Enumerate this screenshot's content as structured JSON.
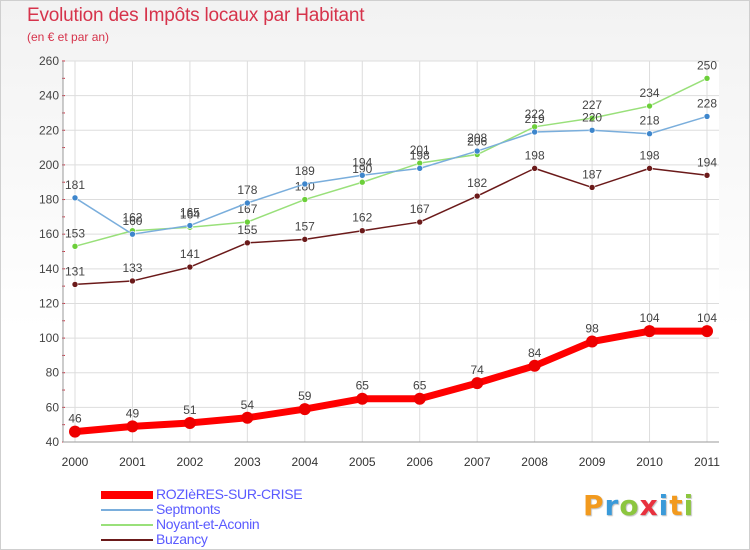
{
  "chart_data": {
    "type": "line",
    "title": "Evolution des Impôts locaux par Habitant",
    "subtitle": "(en € et par an)",
    "categories": [
      "2000",
      "2001",
      "2002",
      "2003",
      "2004",
      "2005",
      "2006",
      "2007",
      "2008",
      "2009",
      "2010",
      "2011"
    ],
    "ylim": [
      40,
      260
    ],
    "yticks": [
      40,
      60,
      80,
      100,
      120,
      140,
      160,
      180,
      200,
      220,
      240,
      260
    ],
    "grid": true,
    "legend_position": "bottom-left",
    "series": [
      {
        "name": "Buzancy",
        "color": "#6b1a1a",
        "marker": "#6b1a1a",
        "values": [
          131,
          133,
          141,
          155,
          157,
          162,
          167,
          182,
          198,
          187,
          198,
          194
        ]
      },
      {
        "name": "Noyant-et-Aconin",
        "color": "#99e07a",
        "marker": "#6ccf3a",
        "values": [
          153,
          162,
          164,
          167,
          180,
          190,
          201,
          206,
          222,
          227,
          234,
          250
        ]
      },
      {
        "name": "Septmonts",
        "color": "#7aaedc",
        "marker": "#3e86cc",
        "values": [
          181,
          160,
          165,
          178,
          189,
          194,
          198,
          208,
          219,
          220,
          218,
          228
        ]
      },
      {
        "name": "ROZIèRES-SUR-CRISE",
        "color": "#ff0000",
        "marker": "#ee0000",
        "values": [
          46,
          49,
          51,
          54,
          59,
          65,
          65,
          74,
          84,
          98,
          104,
          104
        ]
      }
    ]
  },
  "legend": {
    "items": [
      {
        "label": "ROZIèRES-SUR-CRISE",
        "color": "#ff0000"
      },
      {
        "label": "Septmonts",
        "color": "#7aaedc"
      },
      {
        "label": "Noyant-et-Aconin",
        "color": "#99e07a"
      },
      {
        "label": "Buzancy",
        "color": "#6b1a1a"
      }
    ]
  },
  "logo": {
    "letters": [
      "P",
      "r",
      "o",
      "x",
      "i",
      "t",
      "i"
    ]
  }
}
